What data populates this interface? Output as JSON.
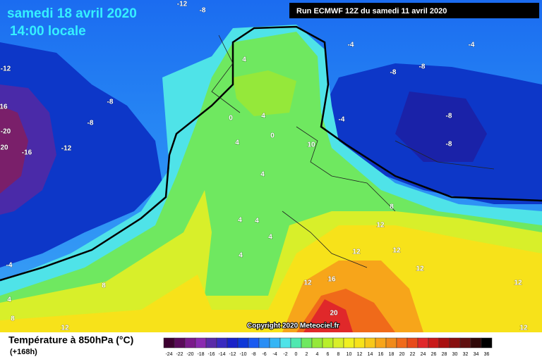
{
  "header": {
    "date": "samedi 18 avril 2020",
    "time": "14:00 locale",
    "run": "Run ECMWF 12Z du samedi 11 avril 2020"
  },
  "contour_labels": [
    -12,
    -8,
    -4,
    -4,
    -12,
    -8,
    -8,
    4,
    -8,
    16,
    -8,
    -8,
    0,
    4,
    -4,
    -20,
    0,
    20,
    -16,
    -12,
    4,
    10,
    -8,
    4,
    8,
    4,
    4,
    12,
    4,
    12,
    12,
    4,
    -4,
    12,
    8,
    12,
    16,
    12,
    4,
    20,
    8,
    12,
    12
  ],
  "copyright": "Copyright 2020 Meteociel.fr",
  "legend": {
    "title": "Température à 850hPa (°C)",
    "lead": "(+168h)",
    "scale": [
      -24,
      -22,
      -20,
      -18,
      -16,
      -14,
      -12,
      -10,
      -8,
      -6,
      -4,
      -2,
      0,
      2,
      4,
      6,
      8,
      10,
      12,
      14,
      16,
      18,
      20,
      22,
      24,
      26,
      28,
      30,
      32,
      34,
      36
    ]
  }
}
